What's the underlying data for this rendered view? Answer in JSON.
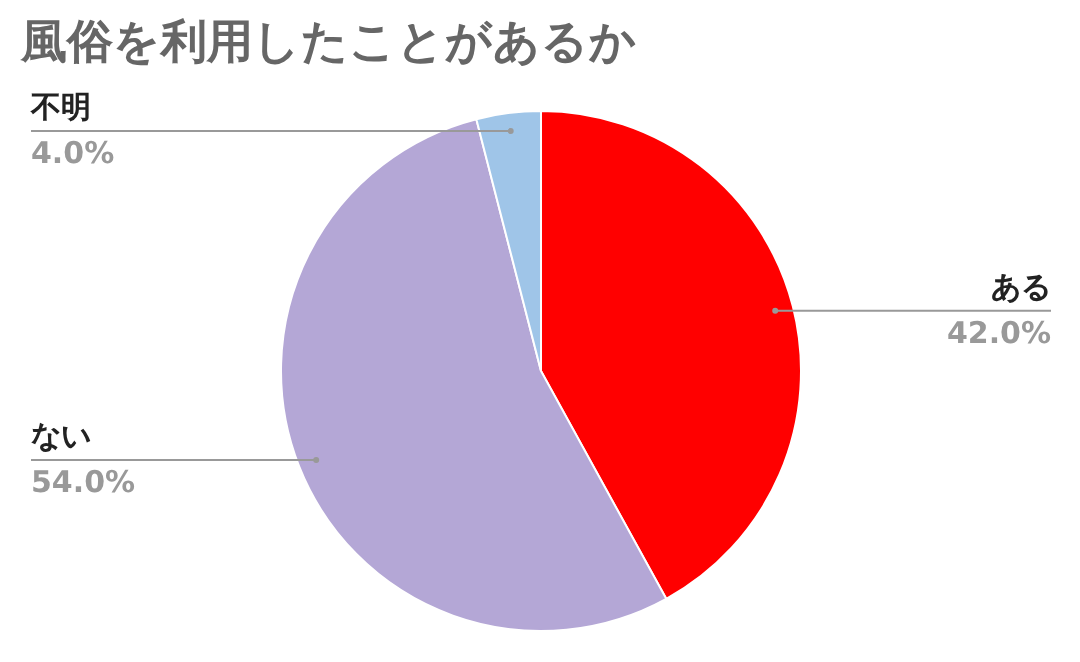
{
  "chart_data": {
    "type": "pie",
    "title": "風俗を利用したことがあるか",
    "categories": [
      "ある",
      "ない",
      "不明"
    ],
    "values": [
      42.0,
      54.0,
      4.0
    ],
    "colors": [
      "#ff0000",
      "#b4a7d6",
      "#9fc5e8"
    ],
    "value_labels": [
      "42.0%",
      "54.0%",
      "4.0%"
    ]
  }
}
